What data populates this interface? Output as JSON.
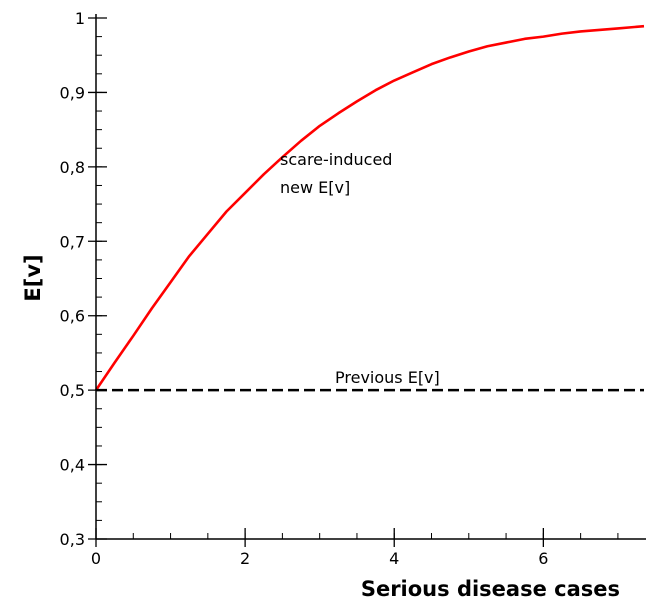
{
  "chart_data": {
    "type": "line",
    "title": "",
    "xlabel": "Serious disease cases",
    "ylabel": "E[v]",
    "xlim": [
      0,
      7.35
    ],
    "ylim": [
      0.3,
      1.0
    ],
    "x_ticks": [
      0,
      2,
      4,
      6
    ],
    "x_tick_labels": [
      "0",
      "2",
      "4",
      "6"
    ],
    "x_minor_step": 0.5,
    "y_ticks": [
      0.3,
      0.4,
      0.5,
      0.6,
      0.7,
      0.8,
      0.9,
      1.0
    ],
    "y_tick_labels": [
      "0,3",
      "0,4",
      "0,5",
      "0,6",
      "0,7",
      "0,8",
      "0,9",
      "1"
    ],
    "y_minor_step": 0.025,
    "grid": false,
    "series": [
      {
        "color": "#ff0000",
        "style": "solid",
        "x": [
          0,
          0.25,
          0.5,
          0.75,
          1.0,
          1.25,
          1.5,
          1.75,
          2.0,
          2.25,
          2.5,
          2.75,
          3.0,
          3.25,
          3.5,
          3.75,
          4.0,
          4.25,
          4.5,
          4.75,
          5.0,
          5.25,
          5.5,
          5.75,
          6.0,
          6.25,
          6.5,
          6.75,
          7.0,
          7.35
        ],
        "y": [
          0.5,
          0.537,
          0.573,
          0.61,
          0.645,
          0.68,
          0.71,
          0.74,
          0.765,
          0.79,
          0.813,
          0.835,
          0.855,
          0.872,
          0.888,
          0.903,
          0.916,
          0.927,
          0.938,
          0.947,
          0.955,
          0.962,
          0.967,
          0.972,
          0.975,
          0.979,
          0.982,
          0.984,
          0.986,
          0.989
        ]
      },
      {
        "color": "#000000",
        "style": "dashed",
        "x": [
          0,
          7.35
        ],
        "y": [
          0.5,
          0.5
        ]
      }
    ],
    "annotations": {
      "curve_line1": "scare-induced",
      "curve_line2": "new E[v]",
      "baseline": "Previous E[v]"
    }
  }
}
